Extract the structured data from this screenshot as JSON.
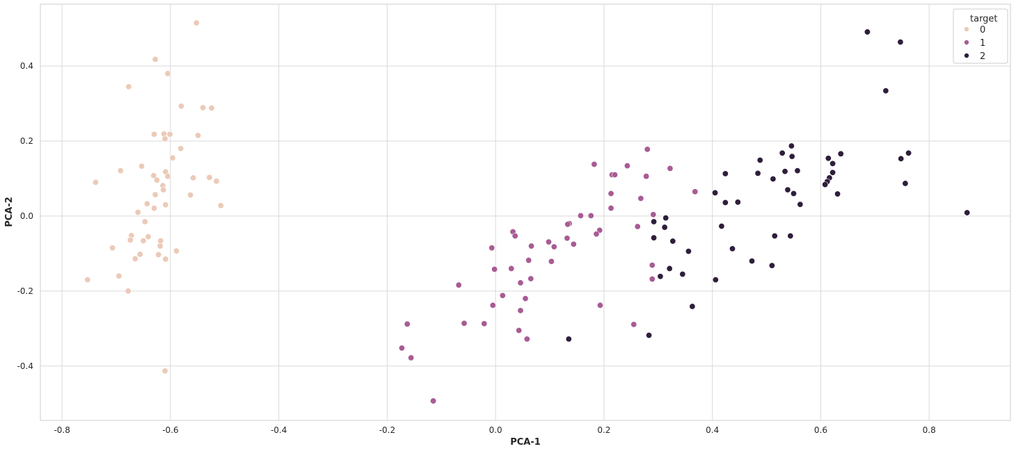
{
  "chart_data": {
    "type": "scatter",
    "xlabel": "PCA-1",
    "ylabel": "PCA-2",
    "xlim": [
      -0.84,
      0.95
    ],
    "ylim": [
      -0.545,
      0.565
    ],
    "xticks": [
      -0.8,
      -0.6,
      -0.4,
      -0.2,
      0.0,
      0.2,
      0.4,
      0.6,
      0.8
    ],
    "yticks": [
      -0.4,
      -0.2,
      0.0,
      0.2,
      0.4
    ],
    "grid": true,
    "legend": {
      "title": "target",
      "position": "top-right"
    },
    "series": [
      {
        "name": "0",
        "color": "#ebcab8",
        "points": [
          [
            -0.552,
            0.515
          ],
          [
            -0.628,
            0.418
          ],
          [
            -0.605,
            0.38
          ],
          [
            -0.677,
            0.345
          ],
          [
            -0.58,
            0.293
          ],
          [
            -0.54,
            0.289
          ],
          [
            -0.524,
            0.288
          ],
          [
            -0.63,
            0.218
          ],
          [
            -0.612,
            0.219
          ],
          [
            -0.601,
            0.218
          ],
          [
            -0.549,
            0.215
          ],
          [
            -0.61,
            0.206
          ],
          [
            -0.581,
            0.18
          ],
          [
            -0.596,
            0.155
          ],
          [
            -0.692,
            0.121
          ],
          [
            -0.653,
            0.133
          ],
          [
            -0.609,
            0.118
          ],
          [
            -0.631,
            0.108
          ],
          [
            -0.605,
            0.106
          ],
          [
            -0.558,
            0.102
          ],
          [
            -0.528,
            0.103
          ],
          [
            -0.515,
            0.093
          ],
          [
            -0.625,
            0.096
          ],
          [
            -0.738,
            0.09
          ],
          [
            -0.614,
            0.081
          ],
          [
            -0.613,
            0.07
          ],
          [
            -0.628,
            0.057
          ],
          [
            -0.563,
            0.056
          ],
          [
            -0.643,
            0.033
          ],
          [
            -0.609,
            0.03
          ],
          [
            -0.507,
            0.028
          ],
          [
            -0.63,
            0.021
          ],
          [
            -0.66,
            0.01
          ],
          [
            -0.647,
            -0.015
          ],
          [
            -0.672,
            -0.052
          ],
          [
            -0.641,
            -0.055
          ],
          [
            -0.674,
            -0.064
          ],
          [
            -0.65,
            -0.066
          ],
          [
            -0.618,
            -0.066
          ],
          [
            -0.619,
            -0.08
          ],
          [
            -0.707,
            -0.085
          ],
          [
            -0.589,
            -0.093
          ],
          [
            -0.656,
            -0.102
          ],
          [
            -0.622,
            -0.103
          ],
          [
            -0.665,
            -0.114
          ],
          [
            -0.609,
            -0.115
          ],
          [
            -0.695,
            -0.16
          ],
          [
            -0.753,
            -0.17
          ],
          [
            -0.678,
            -0.2
          ],
          [
            -0.61,
            -0.413
          ]
        ]
      },
      {
        "name": "1",
        "color": "#a85b94",
        "points": [
          [
            0.28,
            0.178
          ],
          [
            0.182,
            0.138
          ],
          [
            0.243,
            0.134
          ],
          [
            0.322,
            0.127
          ],
          [
            0.215,
            0.11
          ],
          [
            0.22,
            0.11
          ],
          [
            0.278,
            0.106
          ],
          [
            0.368,
            0.065
          ],
          [
            0.213,
            0.06
          ],
          [
            0.268,
            0.047
          ],
          [
            0.213,
            0.021
          ],
          [
            0.157,
            0.001
          ],
          [
            0.176,
            0.001
          ],
          [
            0.291,
            0.004
          ],
          [
            0.136,
            -0.02
          ],
          [
            0.133,
            -0.022
          ],
          [
            0.262,
            -0.028
          ],
          [
            0.032,
            -0.042
          ],
          [
            0.192,
            -0.038
          ],
          [
            0.186,
            -0.048
          ],
          [
            0.036,
            -0.053
          ],
          [
            0.132,
            -0.059
          ],
          [
            0.098,
            -0.069
          ],
          [
            0.144,
            -0.075
          ],
          [
            0.066,
            -0.08
          ],
          [
            0.108,
            -0.082
          ],
          [
            -0.007,
            -0.085
          ],
          [
            -0.002,
            -0.142
          ],
          [
            0.029,
            -0.14
          ],
          [
            0.061,
            -0.118
          ],
          [
            0.103,
            -0.121
          ],
          [
            0.289,
            -0.131
          ],
          [
            0.065,
            -0.167
          ],
          [
            0.289,
            -0.168
          ],
          [
            0.046,
            -0.178
          ],
          [
            -0.068,
            -0.184
          ],
          [
            0.013,
            -0.212
          ],
          [
            0.055,
            -0.22
          ],
          [
            -0.005,
            -0.238
          ],
          [
            0.193,
            -0.238
          ],
          [
            0.046,
            -0.252
          ],
          [
            -0.058,
            -0.286
          ],
          [
            -0.021,
            -0.287
          ],
          [
            -0.163,
            -0.288
          ],
          [
            0.255,
            -0.289
          ],
          [
            0.043,
            -0.305
          ],
          [
            0.058,
            -0.328
          ],
          [
            -0.173,
            -0.352
          ],
          [
            -0.156,
            -0.378
          ],
          [
            -0.115,
            -0.493
          ]
        ]
      },
      {
        "name": "2",
        "color": "#2e1e3b",
        "points": [
          [
            0.686,
            0.491
          ],
          [
            0.747,
            0.464
          ],
          [
            0.72,
            0.334
          ],
          [
            0.546,
            0.187
          ],
          [
            0.529,
            0.168
          ],
          [
            0.637,
            0.166
          ],
          [
            0.762,
            0.168
          ],
          [
            0.547,
            0.159
          ],
          [
            0.614,
            0.154
          ],
          [
            0.748,
            0.153
          ],
          [
            0.488,
            0.149
          ],
          [
            0.622,
            0.14
          ],
          [
            0.534,
            0.119
          ],
          [
            0.557,
            0.121
          ],
          [
            0.484,
            0.114
          ],
          [
            0.622,
            0.116
          ],
          [
            0.424,
            0.113
          ],
          [
            0.616,
            0.102
          ],
          [
            0.512,
            0.099
          ],
          [
            0.612,
            0.092
          ],
          [
            0.608,
            0.084
          ],
          [
            0.756,
            0.087
          ],
          [
            0.539,
            0.07
          ],
          [
            0.405,
            0.062
          ],
          [
            0.55,
            0.06
          ],
          [
            0.631,
            0.059
          ],
          [
            0.424,
            0.036
          ],
          [
            0.447,
            0.037
          ],
          [
            0.562,
            0.031
          ],
          [
            0.87,
            0.009
          ],
          [
            0.314,
            -0.005
          ],
          [
            0.292,
            -0.015
          ],
          [
            0.312,
            -0.03
          ],
          [
            0.417,
            -0.027
          ],
          [
            0.515,
            -0.053
          ],
          [
            0.544,
            -0.053
          ],
          [
            0.292,
            -0.058
          ],
          [
            0.327,
            -0.067
          ],
          [
            0.437,
            -0.087
          ],
          [
            0.356,
            -0.094
          ],
          [
            0.473,
            -0.12
          ],
          [
            0.51,
            -0.132
          ],
          [
            0.321,
            -0.14
          ],
          [
            0.345,
            -0.155
          ],
          [
            0.304,
            -0.161
          ],
          [
            0.406,
            -0.17
          ],
          [
            0.363,
            -0.241
          ],
          [
            0.283,
            -0.318
          ],
          [
            0.135,
            -0.328
          ]
        ]
      }
    ]
  }
}
